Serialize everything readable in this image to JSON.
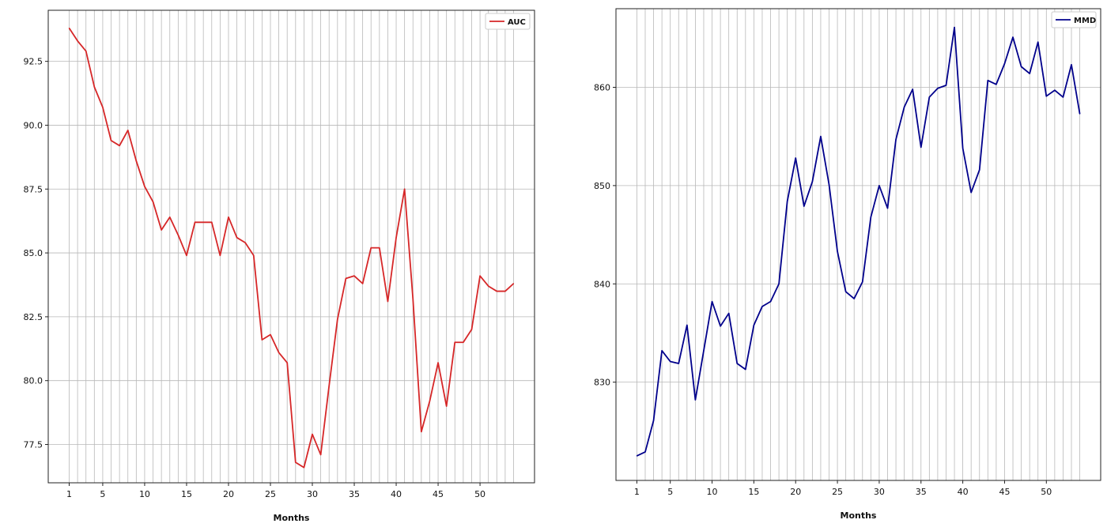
{
  "chart_data": [
    {
      "type": "line",
      "xlabel": "Months",
      "ylabel": "",
      "xlim": [
        -1.5,
        56.5
      ],
      "ylim": [
        76,
        94.5
      ],
      "grid": "both",
      "legend_position": "top-right",
      "xticks": [
        1,
        5,
        10,
        15,
        20,
        25,
        30,
        35,
        40,
        45,
        50
      ],
      "yticks": [
        "77.5",
        "80.0",
        "82.5",
        "85.0",
        "87.5",
        "90.0",
        "92.5"
      ],
      "x": [
        1,
        2,
        3,
        4,
        5,
        6,
        7,
        8,
        9,
        10,
        11,
        12,
        13,
        14,
        15,
        16,
        17,
        18,
        19,
        20,
        21,
        22,
        23,
        24,
        25,
        26,
        27,
        28,
        29,
        30,
        31,
        32,
        33,
        34,
        35,
        36,
        37,
        38,
        39,
        40,
        41,
        42,
        43,
        44,
        45,
        46,
        47,
        48,
        49,
        50,
        51,
        52,
        53,
        54
      ],
      "series": [
        {
          "name": "AUC",
          "color": "#d62728",
          "values": [
            93.8,
            93.3,
            92.9,
            91.5,
            90.7,
            89.4,
            89.2,
            89.8,
            88.6,
            87.6,
            87.0,
            85.9,
            86.4,
            85.7,
            84.9,
            86.2,
            86.2,
            86.2,
            84.9,
            86.4,
            85.6,
            85.4,
            84.9,
            81.6,
            81.8,
            81.1,
            80.7,
            76.8,
            76.6,
            77.9,
            77.1,
            79.8,
            82.4,
            84.0,
            84.1,
            83.8,
            85.2,
            85.2,
            83.1,
            85.6,
            87.5,
            83.2,
            78.0,
            79.2,
            80.7,
            79.0,
            81.5,
            81.5,
            82.0,
            84.1,
            83.7,
            83.5,
            83.5,
            83.8
          ]
        }
      ]
    },
    {
      "type": "line",
      "xlabel": "Months",
      "ylabel": "",
      "xlim": [
        -1.5,
        56.5
      ],
      "ylim": [
        820,
        868
      ],
      "grid": "both",
      "legend_position": "top-right",
      "xticks": [
        1,
        5,
        10,
        15,
        20,
        25,
        30,
        35,
        40,
        45,
        50
      ],
      "yticks": [
        "830",
        "840",
        "850",
        "860"
      ],
      "x": [
        1,
        2,
        3,
        4,
        5,
        6,
        7,
        8,
        9,
        10,
        11,
        12,
        13,
        14,
        15,
        16,
        17,
        18,
        19,
        20,
        21,
        22,
        23,
        24,
        25,
        26,
        27,
        28,
        29,
        30,
        31,
        32,
        33,
        34,
        35,
        36,
        37,
        38,
        39,
        40,
        41,
        42,
        43,
        44,
        45,
        46,
        47,
        48,
        49,
        50,
        51,
        52,
        53,
        54
      ],
      "series": [
        {
          "name": "MMD",
          "color": "#00008b",
          "values": [
            822.5,
            822.9,
            826.1,
            833.2,
            832.1,
            831.9,
            835.8,
            828.2,
            833.2,
            838.2,
            835.7,
            837.0,
            831.9,
            831.3,
            835.8,
            837.7,
            838.2,
            840.0,
            848.4,
            852.8,
            847.9,
            850.4,
            855.0,
            850.1,
            843.3,
            839.2,
            838.5,
            840.2,
            846.8,
            850.0,
            847.7,
            854.7,
            858.0,
            859.8,
            853.9,
            859.0,
            859.9,
            860.2,
            866.1,
            853.8,
            849.3,
            851.6,
            860.7,
            860.3,
            862.4,
            865.1,
            862.1,
            861.4,
            864.6,
            859.1,
            859.7,
            859.0,
            862.3,
            857.3
          ]
        }
      ]
    }
  ]
}
